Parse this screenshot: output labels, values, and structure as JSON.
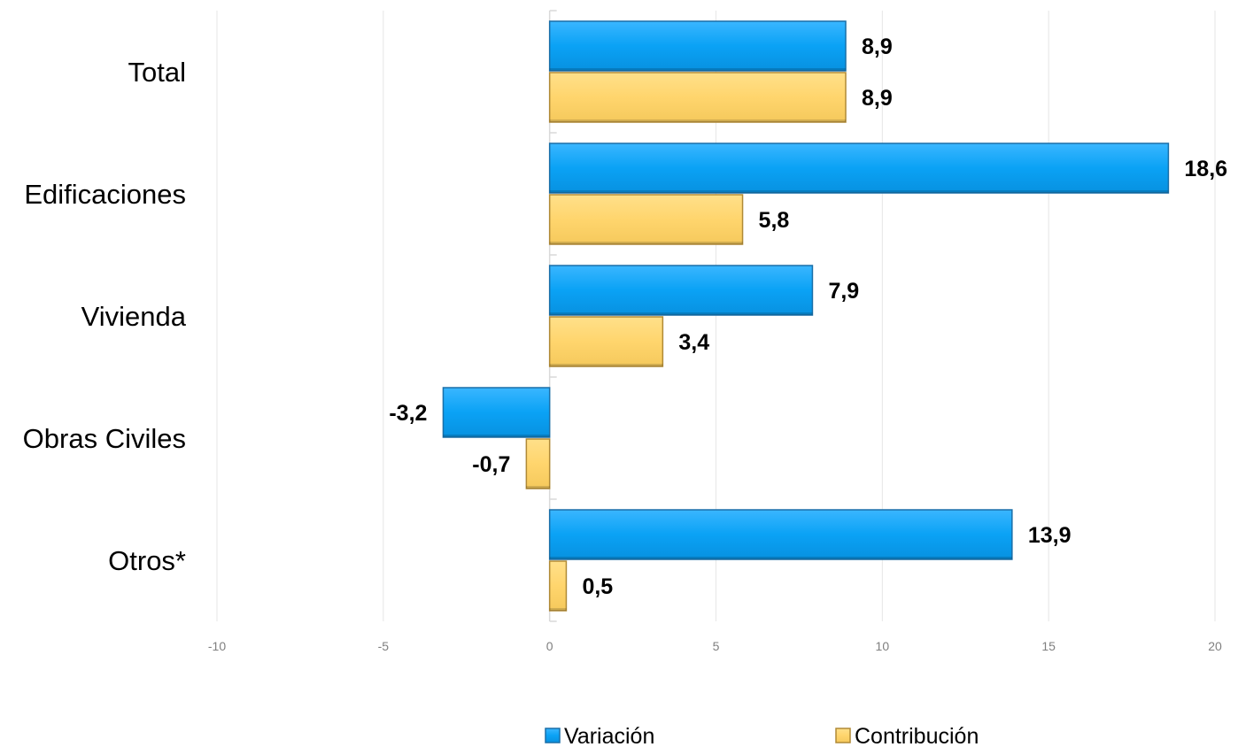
{
  "chart_data": {
    "type": "bar",
    "orientation": "horizontal",
    "categories": [
      "Total",
      "Edificaciones",
      "Vivienda",
      "Obras Civiles",
      "Otros*"
    ],
    "series": [
      {
        "name": "Variación",
        "values": [
          8.9,
          18.6,
          7.9,
          -3.2,
          13.9
        ],
        "labels": [
          "8,9",
          "18,6",
          "7,9",
          "-3,2",
          "13,9"
        ],
        "color": "#0aa2f5"
      },
      {
        "name": "Contribución",
        "values": [
          8.9,
          5.8,
          3.4,
          -0.7,
          0.5
        ],
        "labels": [
          "8,9",
          "5,8",
          "3,4",
          "-0,7",
          "0,5"
        ],
        "color": "#ffd56d"
      }
    ],
    "xlim": [
      -10,
      20
    ],
    "xticks": [
      -10,
      -5,
      0,
      5,
      10,
      15,
      20
    ],
    "xtick_labels": [
      "-10",
      "-5",
      "0",
      "5",
      "10",
      "15",
      "20"
    ],
    "grid": true,
    "legend_position": "bottom",
    "title": "",
    "xlabel": "",
    "ylabel": ""
  }
}
